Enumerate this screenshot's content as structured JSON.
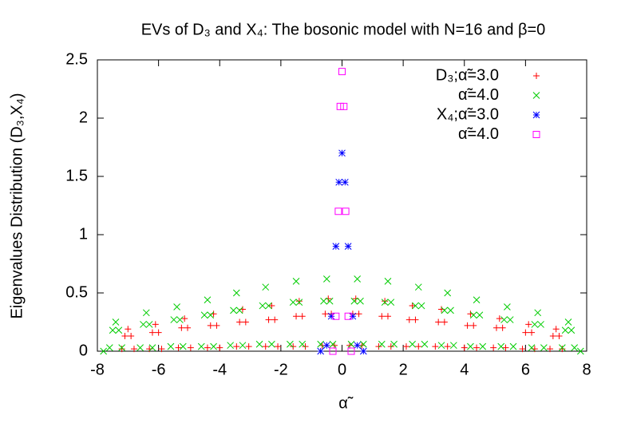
{
  "chart_data": {
    "type": "scatter",
    "title": "EVs of D₃ and X₄: The bosonic model with  N=16 and β=0",
    "x_label": "α̃",
    "y_label": "Eigenvalues Distribution (D₃,X₄)",
    "xlim": [
      -8,
      8
    ],
    "ylim": [
      0,
      2.5
    ],
    "xticks": [
      -8,
      -6,
      -4,
      -2,
      0,
      2,
      4,
      6,
      8
    ],
    "yticks": [
      0,
      0.5,
      1,
      1.5,
      2,
      2.5
    ],
    "legend": "top-right",
    "series": [
      {
        "name": "D₃;α̃=3.0",
        "color": "#ff0000",
        "marker": "plus",
        "x": [
          -7.2,
          -7.1,
          -7.0,
          -6.9,
          -6.8,
          -6.3,
          -6.2,
          -6.1,
          -6.0,
          -5.9,
          -5.35,
          -5.25,
          -5.15,
          -5.05,
          -4.95,
          -4.4,
          -4.3,
          -4.2,
          -4.1,
          -4.0,
          -3.45,
          -3.35,
          -3.25,
          -3.15,
          -3.05,
          -2.5,
          -2.4,
          -2.3,
          -2.2,
          -2.1,
          -1.6,
          -1.5,
          -1.4,
          -1.3,
          -1.2,
          -0.65,
          -0.55,
          -0.45,
          -0.35,
          -0.25,
          0.25,
          0.35,
          0.45,
          0.55,
          0.65,
          1.2,
          1.3,
          1.4,
          1.5,
          1.6,
          2.1,
          2.2,
          2.3,
          2.4,
          2.5,
          3.05,
          3.15,
          3.25,
          3.35,
          3.45,
          4.0,
          4.1,
          4.2,
          4.3,
          4.4,
          4.95,
          5.05,
          5.15,
          5.25,
          5.35,
          5.9,
          6.0,
          6.1,
          6.2,
          6.3,
          6.8,
          6.9,
          7.0,
          7.1,
          7.2
        ],
        "values": [
          0.02,
          0.13,
          0.19,
          0.13,
          0.02,
          0.02,
          0.16,
          0.23,
          0.16,
          0.02,
          0.03,
          0.2,
          0.28,
          0.2,
          0.03,
          0.03,
          0.22,
          0.32,
          0.22,
          0.03,
          0.04,
          0.25,
          0.36,
          0.25,
          0.04,
          0.04,
          0.27,
          0.39,
          0.27,
          0.04,
          0.04,
          0.3,
          0.43,
          0.3,
          0.04,
          0.05,
          0.32,
          0.45,
          0.32,
          0.05,
          0.05,
          0.32,
          0.45,
          0.32,
          0.05,
          0.04,
          0.3,
          0.43,
          0.3,
          0.04,
          0.04,
          0.27,
          0.39,
          0.27,
          0.04,
          0.04,
          0.25,
          0.36,
          0.25,
          0.04,
          0.03,
          0.22,
          0.32,
          0.22,
          0.03,
          0.03,
          0.2,
          0.28,
          0.2,
          0.03,
          0.02,
          0.16,
          0.23,
          0.16,
          0.02,
          0.02,
          0.13,
          0.19,
          0.13,
          0.02
        ]
      },
      {
        "name": "α̃=4.0",
        "color": "#00cc00",
        "marker": "cross",
        "x": [
          -7.8,
          -7.6,
          -7.5,
          -7.4,
          -7.3,
          -7.2,
          -6.6,
          -6.5,
          -6.4,
          -6.3,
          -6.2,
          -5.6,
          -5.5,
          -5.4,
          -5.3,
          -5.2,
          -4.6,
          -4.5,
          -4.4,
          -4.3,
          -4.2,
          -3.65,
          -3.55,
          -3.45,
          -3.35,
          -3.25,
          -2.7,
          -2.6,
          -2.5,
          -2.4,
          -2.3,
          -1.7,
          -1.6,
          -1.5,
          -1.4,
          -1.3,
          -0.7,
          -0.6,
          -0.5,
          -0.4,
          -0.3,
          0.3,
          0.4,
          0.5,
          0.6,
          0.7,
          1.3,
          1.4,
          1.5,
          1.6,
          1.7,
          2.3,
          2.4,
          2.5,
          2.6,
          2.7,
          3.25,
          3.35,
          3.45,
          3.55,
          3.65,
          4.2,
          4.3,
          4.4,
          4.5,
          4.6,
          5.2,
          5.3,
          5.4,
          5.5,
          5.6,
          6.2,
          6.3,
          6.4,
          6.5,
          6.6,
          7.2,
          7.3,
          7.4,
          7.5,
          7.6,
          7.8
        ],
        "values": [
          0,
          0.03,
          0.18,
          0.25,
          0.18,
          0.03,
          0.03,
          0.23,
          0.33,
          0.23,
          0.03,
          0.04,
          0.27,
          0.38,
          0.27,
          0.04,
          0.04,
          0.31,
          0.44,
          0.31,
          0.04,
          0.05,
          0.35,
          0.5,
          0.35,
          0.05,
          0.06,
          0.39,
          0.55,
          0.39,
          0.06,
          0.06,
          0.42,
          0.6,
          0.42,
          0.06,
          0.06,
          0.43,
          0.62,
          0.43,
          0.06,
          0.06,
          0.43,
          0.62,
          0.43,
          0.06,
          0.06,
          0.42,
          0.6,
          0.42,
          0.06,
          0.06,
          0.39,
          0.55,
          0.39,
          0.06,
          0.05,
          0.35,
          0.5,
          0.35,
          0.05,
          0.04,
          0.31,
          0.44,
          0.31,
          0.04,
          0.04,
          0.27,
          0.38,
          0.27,
          0.04,
          0.03,
          0.23,
          0.33,
          0.23,
          0.03,
          0.03,
          0.18,
          0.25,
          0.18,
          0.03,
          0
        ]
      },
      {
        "name": "X₄;α̃=3.0",
        "color": "#0000ff",
        "marker": "star",
        "x": [
          -0.7,
          -0.5,
          -0.35,
          -0.2,
          -0.1,
          0,
          0.1,
          0.2,
          0.35,
          0.5,
          0.7
        ],
        "values": [
          0,
          0.05,
          0.3,
          0.9,
          1.45,
          1.7,
          1.45,
          0.9,
          0.3,
          0.05,
          0
        ]
      },
      {
        "name": "α̃=4.0",
        "color": "#ff00ff",
        "marker": "square",
        "x": [
          -0.3,
          -0.2,
          -0.12,
          -0.06,
          0,
          0.06,
          0.12,
          0.2,
          0.3
        ],
        "values": [
          0,
          0.3,
          1.2,
          2.1,
          2.4,
          2.1,
          1.2,
          0.3,
          0
        ]
      }
    ]
  }
}
